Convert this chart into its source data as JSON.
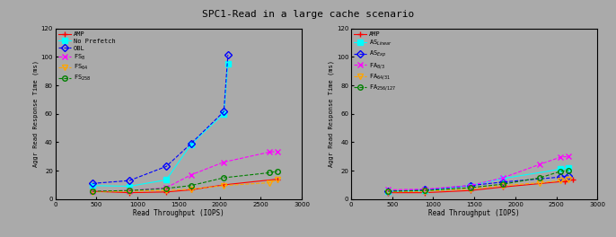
{
  "title": "SPC1-Read in a large cache scenario",
  "background_color": "#aaaaaa",
  "left": {
    "series": [
      {
        "label": "AMP",
        "x": [
          450,
          900,
          1350,
          1650,
          2050,
          2700
        ],
        "y": [
          5.5,
          4.5,
          5.0,
          6.5,
          10.0,
          14.0
        ],
        "color": "red",
        "marker": "+",
        "linestyle": "-",
        "markersize": 4,
        "linewidth": 0.8
      },
      {
        "label": "No Prefetch",
        "x": [
          450,
          900,
          1350,
          1650,
          2050,
          2100
        ],
        "y": [
          9.5,
          9.0,
          13.5,
          38.5,
          60.0,
          95.0
        ],
        "color": "cyan",
        "marker": "s",
        "linestyle": "-",
        "markersize": 4,
        "linewidth": 0.8,
        "markerfacecolor": "cyan"
      },
      {
        "label": "OBL",
        "x": [
          450,
          900,
          1350,
          1650,
          2050,
          2100
        ],
        "y": [
          11.0,
          13.0,
          23.0,
          39.0,
          61.5,
          101.5
        ],
        "color": "blue",
        "marker": "D",
        "linestyle": "--",
        "markersize": 4,
        "linewidth": 0.8,
        "markerfacecolor": "none"
      },
      {
        "label": "FS_8",
        "label_main": "FS",
        "label_sub": "8",
        "x": [
          450,
          900,
          1350,
          1650,
          2050,
          2600,
          2700
        ],
        "y": [
          5.5,
          6.0,
          8.0,
          17.0,
          26.0,
          33.0,
          33.5
        ],
        "color": "magenta",
        "marker": "x",
        "linestyle": "--",
        "markersize": 4,
        "linewidth": 0.8
      },
      {
        "label": "FS_64",
        "label_main": "FS",
        "label_sub": "64",
        "x": [
          450,
          900,
          1350,
          1650,
          2050,
          2600,
          2700
        ],
        "y": [
          5.0,
          5.5,
          6.0,
          7.0,
          9.5,
          11.5,
          13.5
        ],
        "color": "orange",
        "marker": "v",
        "linestyle": "--",
        "markersize": 4,
        "linewidth": 0.8,
        "markerfacecolor": "none"
      },
      {
        "label": "FS_258",
        "label_main": "FS",
        "label_sub": "258",
        "x": [
          450,
          900,
          1350,
          1650,
          2050,
          2600,
          2700
        ],
        "y": [
          5.5,
          6.0,
          7.5,
          9.5,
          15.0,
          18.5,
          19.5
        ],
        "color": "green",
        "marker": "o",
        "linestyle": "--",
        "markersize": 4,
        "linewidth": 0.8,
        "markerfacecolor": "none"
      }
    ],
    "legend_labels": [
      "AMP",
      "No Prefetch",
      "OBL",
      "FS$_8$",
      "FS$_{64}$",
      "FS$_{258}$"
    ],
    "xlabel": "Read Throughput (IOPS)",
    "ylabel": "Aggr Read Response Time (ms)",
    "xlim": [
      0,
      3000
    ],
    "ylim": [
      0,
      120
    ],
    "xticks": [
      0,
      500,
      1000,
      1500,
      2000,
      2500,
      3000
    ],
    "yticks": [
      0,
      20,
      40,
      60,
      80,
      100,
      120
    ]
  },
  "right": {
    "series": [
      {
        "label": "AMP",
        "x": [
          450,
          900,
          1450,
          1850,
          2600,
          2700
        ],
        "y": [
          4.5,
          4.5,
          6.0,
          8.5,
          12.5,
          13.5
        ],
        "color": "red",
        "marker": "+",
        "linestyle": "-",
        "markersize": 4,
        "linewidth": 0.8
      },
      {
        "label": "AS_Linear",
        "label_main": "AS",
        "label_sub": "Linear",
        "x": [
          450,
          900,
          1450,
          1850,
          2550,
          2650
        ],
        "y": [
          5.5,
          6.0,
          9.5,
          14.5,
          21.0,
          22.0
        ],
        "color": "cyan",
        "marker": "s",
        "linestyle": "-",
        "markersize": 4,
        "linewidth": 0.8,
        "markerfacecolor": "cyan"
      },
      {
        "label": "AS_Exp",
        "label_main": "AS",
        "label_sub": "Exp",
        "x": [
          450,
          900,
          1450,
          1850,
          2550,
          2650
        ],
        "y": [
          5.5,
          6.5,
          9.5,
          12.0,
          15.5,
          16.5
        ],
        "color": "blue",
        "marker": "D",
        "linestyle": "--",
        "markersize": 4,
        "linewidth": 0.8,
        "markerfacecolor": "none"
      },
      {
        "label": "FA_8/3",
        "label_main": "FA",
        "label_sub": "8/3",
        "x": [
          450,
          900,
          1450,
          1850,
          2300,
          2550,
          2650
        ],
        "y": [
          6.5,
          7.0,
          9.5,
          15.0,
          24.5,
          29.5,
          30.0
        ],
        "color": "magenta",
        "marker": "x",
        "linestyle": "--",
        "markersize": 4,
        "linewidth": 0.8
      },
      {
        "label": "FA_64/31",
        "label_main": "FA",
        "label_sub": "64/31",
        "x": [
          450,
          900,
          1450,
          1850,
          2300,
          2550,
          2650
        ],
        "y": [
          5.0,
          5.5,
          7.0,
          9.5,
          11.5,
          13.0,
          13.5
        ],
        "color": "orange",
        "marker": "v",
        "linestyle": "--",
        "markersize": 4,
        "linewidth": 0.8,
        "markerfacecolor": "none"
      },
      {
        "label": "FA_256/127",
        "label_main": "FA",
        "label_sub": "256/127",
        "x": [
          450,
          900,
          1450,
          1850,
          2300,
          2550,
          2650
        ],
        "y": [
          5.5,
          6.0,
          8.0,
          10.5,
          15.0,
          19.5,
          20.0
        ],
        "color": "green",
        "marker": "o",
        "linestyle": "--",
        "markersize": 4,
        "linewidth": 0.8,
        "markerfacecolor": "none"
      }
    ],
    "legend_labels": [
      "AMP",
      "AS$_{Linear}$",
      "AS$_{Exp}$",
      "FA$_{8/3}$",
      "FA$_{64/31}$",
      "FA$_{256/127}$"
    ],
    "xlabel": "Read Throughput (IOPS)",
    "ylabel": "Aggr Read Response Time (ms)",
    "xlim": [
      0,
      3000
    ],
    "ylim": [
      0,
      120
    ],
    "xticks": [
      0,
      500,
      1000,
      1500,
      2000,
      2500,
      3000
    ],
    "yticks": [
      0,
      20,
      40,
      60,
      80,
      100,
      120
    ]
  }
}
